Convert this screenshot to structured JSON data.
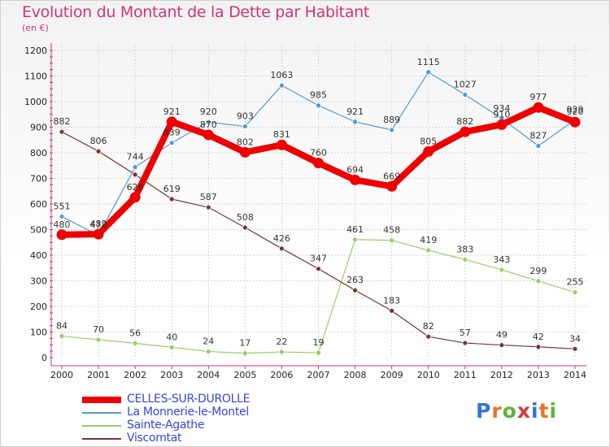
{
  "title": "Evolution du Montant de la Dette par Habitant",
  "unit": "(en €)",
  "logo": {
    "text": "Proxiti",
    "letters": [
      "P",
      "r",
      "o",
      "x",
      "i",
      "t",
      "i"
    ],
    "colors": [
      "#3a6fd8",
      "#e8732a",
      "#5ab53a",
      "#d23a3a",
      "#3a6fd8",
      "#e8732a",
      "#5ab53a"
    ]
  },
  "chart_data": {
    "type": "line",
    "x": [
      2000,
      2001,
      2002,
      2003,
      2004,
      2005,
      2006,
      2007,
      2008,
      2009,
      2010,
      2011,
      2012,
      2013,
      2014
    ],
    "ylim": [
      0,
      1200
    ],
    "yticks": [
      0,
      100,
      200,
      300,
      400,
      500,
      600,
      700,
      800,
      900,
      1000,
      1100,
      1200
    ],
    "grid": true,
    "legend_position": "bottom-left",
    "series": [
      {
        "name": "CELLES-SUR-DUROLLE",
        "color": "#ee0000",
        "width": 8,
        "values": [
          480,
          482,
          626,
          921,
          870,
          802,
          831,
          760,
          694,
          669,
          805,
          882,
          910,
          977,
          920
        ],
        "labels": [
          "480",
          "482",
          "626",
          "921",
          "870",
          "802",
          "831",
          "760",
          "694",
          "669",
          "805",
          "882",
          "910",
          "977",
          "920"
        ]
      },
      {
        "name": "La Monnerie-le-Montel",
        "color": "#5599cc",
        "width": 1.2,
        "values": [
          551,
          478,
          744,
          839,
          920,
          903,
          1063,
          985,
          921,
          889,
          1115,
          1027,
          934,
          827,
          929
        ],
        "labels": [
          "551",
          "478",
          "744",
          "839",
          "920",
          "903",
          "1063",
          "985",
          "921",
          "889",
          "1115",
          "1027",
          "934",
          "827",
          "929"
        ]
      },
      {
        "name": "Sainte-Agathe",
        "color": "#99cc66",
        "width": 1.2,
        "values": [
          84,
          70,
          56,
          40,
          24,
          17,
          22,
          19,
          461,
          458,
          419,
          383,
          343,
          299,
          255
        ],
        "labels": [
          "84",
          "70",
          "56",
          "40",
          "24",
          "17",
          "22",
          "19",
          "461",
          "458",
          "419",
          "383",
          "343",
          "299",
          "255"
        ]
      },
      {
        "name": "Viscomtat",
        "color": "#773333",
        "width": 1.2,
        "values": [
          882,
          806,
          715,
          619,
          587,
          508,
          426,
          347,
          263,
          183,
          82,
          57,
          49,
          42,
          34
        ],
        "labels": [
          "882",
          "806",
          "",
          "619",
          "587",
          "508",
          "426",
          "347",
          "263",
          "183",
          "82",
          "57",
          "49",
          "42",
          "34"
        ]
      }
    ]
  }
}
